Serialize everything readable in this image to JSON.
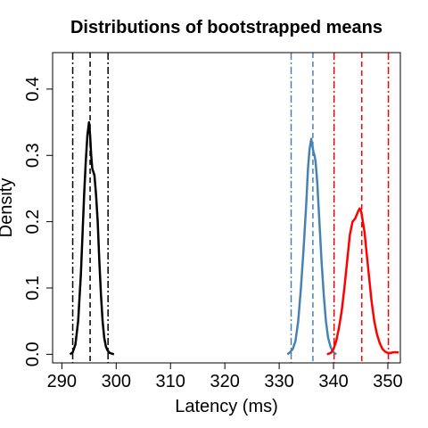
{
  "chart_data": {
    "type": "line",
    "title": "Distributions of bootstrapped means",
    "xlabel": "Latency (ms)",
    "ylabel": "Density",
    "xlim": [
      288.3,
      352.3
    ],
    "ylim": [
      -0.013,
      0.455
    ],
    "xticks": [
      290,
      300,
      310,
      320,
      330,
      340,
      350
    ],
    "yticks": [
      0.0,
      0.1,
      0.2,
      0.3,
      0.4
    ],
    "grid": false,
    "series": [
      {
        "color": "#000000",
        "x": [
          291.5,
          292.0,
          292.5,
          293.0,
          293.5,
          293.8,
          294.1,
          294.4,
          294.7,
          295.0,
          295.2,
          295.4,
          295.6,
          295.8,
          296.0,
          296.3,
          296.6,
          296.9,
          297.2,
          297.5,
          297.8,
          298.1,
          298.4,
          298.8,
          299.2,
          299.6
        ],
        "y": [
          0.0,
          0.003,
          0.015,
          0.05,
          0.12,
          0.18,
          0.24,
          0.29,
          0.33,
          0.35,
          0.33,
          0.3,
          0.28,
          0.275,
          0.27,
          0.24,
          0.2,
          0.14,
          0.09,
          0.05,
          0.025,
          0.012,
          0.006,
          0.002,
          0.001,
          0.0
        ]
      },
      {
        "color": "#4682B4",
        "x": [
          331.5,
          332.0,
          332.5,
          333.0,
          333.5,
          334.0,
          334.5,
          335.0,
          335.3,
          335.6,
          335.9,
          336.1,
          336.3,
          336.5,
          336.7,
          337.0,
          337.4,
          337.8,
          338.2,
          338.6,
          339.0,
          339.5,
          340.0,
          340.5
        ],
        "y": [
          0.0,
          0.003,
          0.008,
          0.02,
          0.05,
          0.1,
          0.16,
          0.23,
          0.28,
          0.31,
          0.325,
          0.315,
          0.305,
          0.3,
          0.29,
          0.26,
          0.2,
          0.14,
          0.09,
          0.05,
          0.025,
          0.01,
          0.003,
          0.0
        ]
      },
      {
        "color": "#FF0000",
        "x": [
          338.8,
          339.5,
          340.0,
          340.5,
          341.0,
          341.5,
          342.0,
          342.5,
          343.0,
          343.5,
          344.0,
          344.5,
          344.8,
          345.1,
          345.4,
          345.7,
          346.0,
          346.5,
          347.0,
          347.5,
          348.0,
          348.5,
          349.0,
          349.5,
          350.0,
          350.5,
          351.0,
          352.0
        ],
        "y": [
          0.0,
          0.002,
          0.008,
          0.02,
          0.04,
          0.065,
          0.1,
          0.14,
          0.18,
          0.2,
          0.205,
          0.215,
          0.22,
          0.215,
          0.2,
          0.185,
          0.16,
          0.12,
          0.08,
          0.05,
          0.03,
          0.017,
          0.008,
          0.004,
          0.002,
          0.002,
          0.003,
          0.003
        ]
      }
    ],
    "vlines": [
      {
        "x": 292.0,
        "color": "#000000",
        "style": "dashdot"
      },
      {
        "x": 295.2,
        "color": "#000000",
        "style": "dashed"
      },
      {
        "x": 298.5,
        "color": "#000000",
        "style": "dashdot"
      },
      {
        "x": 332.2,
        "color": "#4682B4",
        "style": "dashdot"
      },
      {
        "x": 336.2,
        "color": "#4682B4",
        "style": "dashed"
      },
      {
        "x": 340.1,
        "color": "#FF0000",
        "style": "dashdot"
      },
      {
        "x": 345.2,
        "color": "#FF0000",
        "style": "dashed"
      },
      {
        "x": 350.1,
        "color": "#FF0000",
        "style": "dashdot"
      }
    ]
  }
}
